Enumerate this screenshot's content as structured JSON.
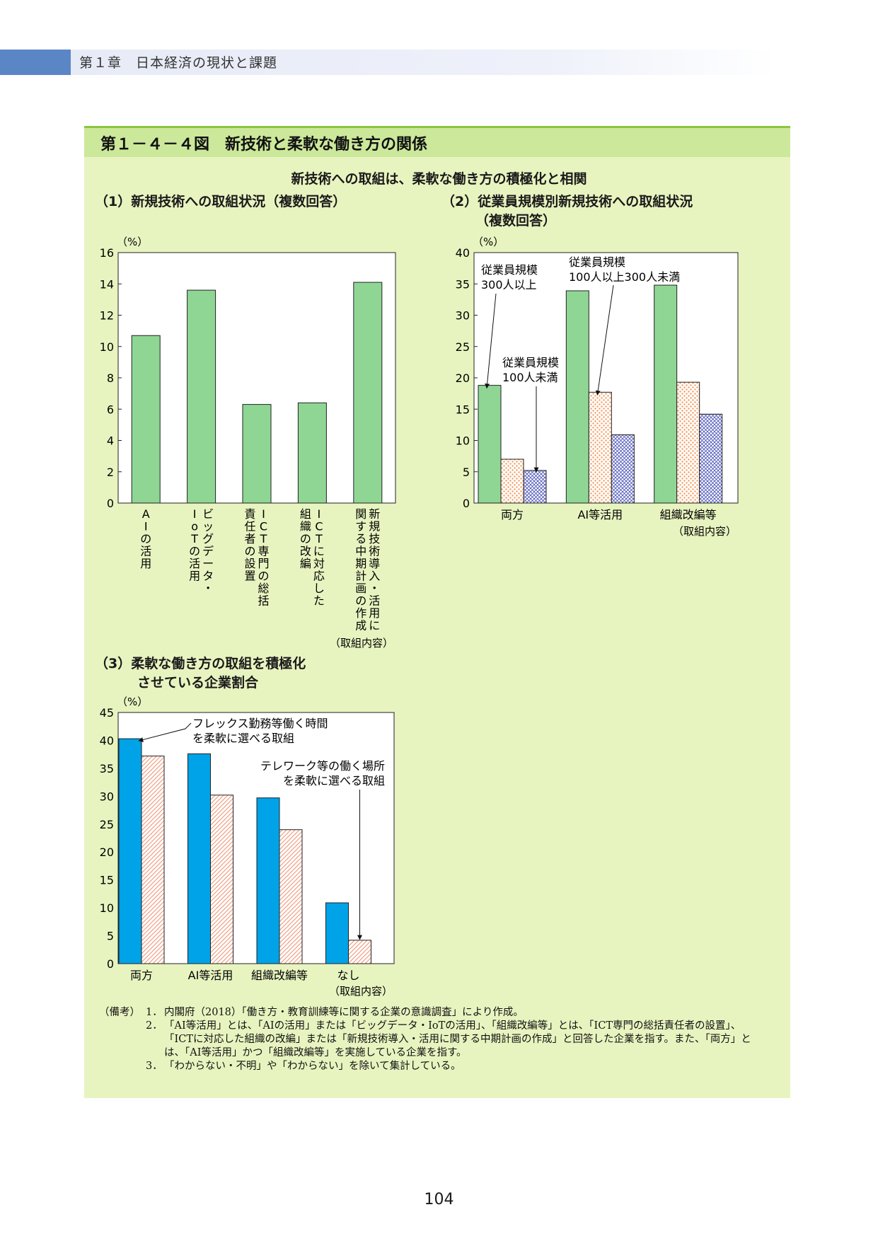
{
  "header": {
    "text": "第１章　日本経済の現状と課題"
  },
  "figure": {
    "title": "第１－４－４図　新技術と柔軟な働き方の関係",
    "subtitle": "新技術への取組は、柔軟な働き方の積極化と相関"
  },
  "panels": {
    "p1_title": "（1）新規技術への取組状況（複数回答）",
    "p2_title_line1": "（2）従業員規模別新規技術への取組状況",
    "p2_title_line2": "（複数回答）",
    "p3_title_line1": "（3）柔軟な働き方の取組を積極化",
    "p3_title_line2": "させている企業割合"
  },
  "chart_data": [
    {
      "id": "chart1",
      "type": "bar",
      "unit": "（%）",
      "ylim": [
        0,
        16
      ],
      "yticks": [
        "0",
        "2",
        "4",
        "6",
        "8",
        "10",
        "12",
        "14",
        "16"
      ],
      "categories": [
        "AIの活用",
        "ビッグデータ・IoTの活用",
        "ICT専門の総括責任者の設置",
        "ICTに対応した組織の改編",
        "新規技術導入・活用に関する中期計画の作成"
      ],
      "category_label_columns": [
        [
          "AIの活用"
        ],
        [
          "ビッグデータ・",
          "IoTの活用"
        ],
        [
          "ICT専門の総括",
          "責任者の設置"
        ],
        [
          "ICTに対応した",
          "組織の改編"
        ],
        [
          "新規技術導入・活用に",
          "関する中期計画の作成"
        ]
      ],
      "values": [
        10.7,
        13.6,
        6.3,
        6.4,
        14.1
      ],
      "color": "#8fd694",
      "xlabel": "（取組内容）"
    },
    {
      "id": "chart2",
      "type": "bar",
      "unit": "（%）",
      "ylim": [
        0,
        40
      ],
      "yticks": [
        "0",
        "5",
        "10",
        "15",
        "20",
        "25",
        "30",
        "35",
        "40"
      ],
      "categories": [
        "両方",
        "AI等活用",
        "組織改編等"
      ],
      "series": [
        {
          "name": "従業員規模300人以上",
          "values": [
            18.8,
            33.9,
            34.8
          ]
        },
        {
          "name": "従業員規模100人以上300人未満",
          "values": [
            7.0,
            17.7,
            19.3
          ]
        },
        {
          "name": "従業員規模100人未満",
          "values": [
            5.2,
            10.9,
            14.2
          ]
        }
      ],
      "annotations": [
        {
          "line1": "従業員規模",
          "line2": "300人以上"
        },
        {
          "line1": "従業員規模",
          "line2": "100人以上300人未満"
        },
        {
          "line1": "従業員規模",
          "line2": "100人未満"
        }
      ],
      "xlabel": "（取組内容）"
    },
    {
      "id": "chart3",
      "type": "bar",
      "unit": "（%）",
      "ylim": [
        0,
        45
      ],
      "yticks": [
        "0",
        "5",
        "10",
        "15",
        "20",
        "25",
        "30",
        "35",
        "40",
        "45"
      ],
      "categories": [
        "両方",
        "AI等活用",
        "組織改編等",
        "なし"
      ],
      "series": [
        {
          "name": "フレックス勤務等働く時間を柔軟に選べる取組",
          "values": [
            40.3,
            37.6,
            29.7,
            10.9
          ]
        },
        {
          "name": "テレワーク等の働く場所を柔軟に選べる取組",
          "values": [
            37.2,
            30.2,
            24.0,
            4.2
          ]
        }
      ],
      "annotations": [
        {
          "line1": "フレックス勤務等働く時間",
          "line2": "を柔軟に選べる取組"
        },
        {
          "line1": "テレワーク等の働く場所",
          "line2": "を柔軟に選べる取組"
        }
      ],
      "xlabel": "（取組内容）"
    }
  ],
  "notes": {
    "label": "（備考）",
    "items": [
      {
        "num": "1．",
        "text": "内閣府（2018）「働き方・教育訓練等に関する企業の意識調査」により作成。"
      },
      {
        "num": "2．",
        "text": "「AI等活用」とは、「AIの活用」または「ビッグデータ・IoTの活用」、「組織改編等」とは、「ICT専門の総括責任者の設置」、「ICTに対応した組織の改編」または「新規技術導入・活用に関する中期計画の作成」と回答した企業を指す。また、「両方」とは、「AI等活用」かつ「組織改編等」を実施している企業を指す。"
      },
      {
        "num": "3．",
        "text": "「わからない・不明」や「わからない」を除いて集計している。"
      }
    ]
  },
  "page_number": "104"
}
